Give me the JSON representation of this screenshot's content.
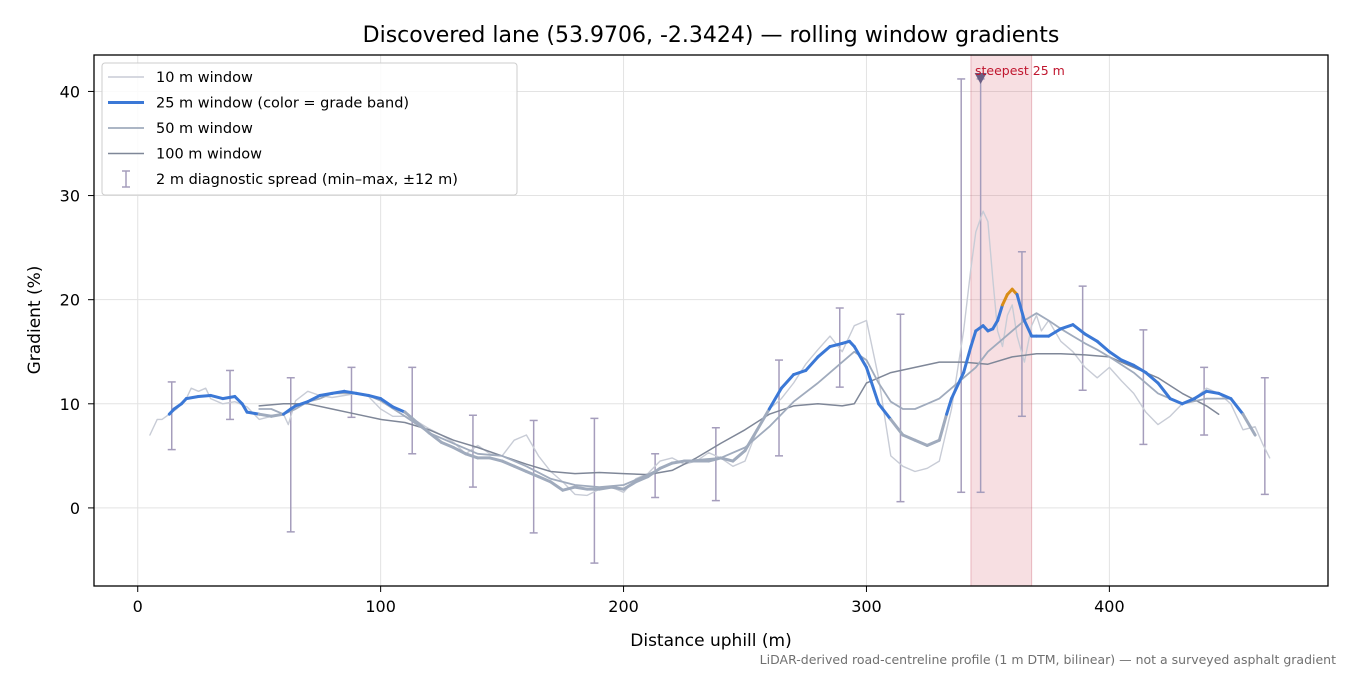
{
  "chart_data": {
    "type": "line",
    "title": "Discovered lane (53.9706, -2.3424) — rolling window gradients",
    "xlabel": "Distance uphill (m)",
    "ylabel": "Gradient (%)",
    "xlim": [
      -18,
      490
    ],
    "ylim": [
      -7.5,
      43.5
    ],
    "xticks": [
      0,
      100,
      200,
      300,
      400
    ],
    "yticks": [
      0,
      10,
      20,
      30,
      40
    ],
    "grid": true,
    "legend_position": "top-left",
    "footnote": "LiDAR-derived road-centreline profile (1 m DTM, bilinear) — not a surveyed asphalt gradient",
    "highlight": {
      "x_start": 343,
      "x_end": 368,
      "label": "steepest 25 m",
      "marker_x": 347,
      "marker_y": 41.2
    },
    "series": [
      {
        "name": "10 m window",
        "color": "#c8ccd6",
        "x": [
          5,
          8,
          10,
          13,
          16,
          20,
          22,
          25,
          28,
          30,
          35,
          40,
          45,
          50,
          55,
          60,
          62,
          65,
          70,
          75,
          80,
          85,
          90,
          95,
          100,
          105,
          110,
          115,
          120,
          125,
          130,
          135,
          140,
          145,
          150,
          155,
          160,
          165,
          170,
          175,
          180,
          185,
          190,
          195,
          200,
          205,
          210,
          215,
          220,
          225,
          230,
          235,
          240,
          245,
          250,
          255,
          260,
          265,
          270,
          275,
          280,
          285,
          290,
          295,
          300,
          305,
          310,
          315,
          320,
          325,
          330,
          335,
          340,
          343,
          345,
          348,
          350,
          352,
          354,
          356,
          358,
          360,
          362,
          365,
          368,
          370,
          372,
          375,
          380,
          385,
          390,
          395,
          400,
          405,
          410,
          415,
          420,
          425,
          430,
          435,
          440,
          445,
          450,
          455,
          460,
          463,
          466
        ],
        "y": [
          7.0,
          8.5,
          8.5,
          9.0,
          9.5,
          10.5,
          11.5,
          11.2,
          11.5,
          10.5,
          10.0,
          10.2,
          9.7,
          8.5,
          8.8,
          9.0,
          8.0,
          10.3,
          11.2,
          10.8,
          10.6,
          10.8,
          11.0,
          10.7,
          9.5,
          8.8,
          8.8,
          8.3,
          7.6,
          7.0,
          6.3,
          5.2,
          6.0,
          5.2,
          5.0,
          6.5,
          7.0,
          5.0,
          3.5,
          2.5,
          1.3,
          1.2,
          1.8,
          2.0,
          1.5,
          2.8,
          3.3,
          4.5,
          4.8,
          4.2,
          4.5,
          5.3,
          4.8,
          4.0,
          4.5,
          7.5,
          9.5,
          10.5,
          12.0,
          13.8,
          15.2,
          16.5,
          15.0,
          17.5,
          18.0,
          12.5,
          5.0,
          4.0,
          3.5,
          3.8,
          4.5,
          9.5,
          17.0,
          23.0,
          26.5,
          28.5,
          27.5,
          22.0,
          17.0,
          15.5,
          18.5,
          19.5,
          16.5,
          14.0,
          17.5,
          18.5,
          17.0,
          18.0,
          16.0,
          15.0,
          13.5,
          12.5,
          13.5,
          12.2,
          11.0,
          9.2,
          8.0,
          8.8,
          10.0,
          10.5,
          11.5,
          11.0,
          10.0,
          7.5,
          7.8,
          6.2,
          4.8
        ]
      },
      {
        "name": "25 m window (color = grade band)",
        "color": "#3b78d6",
        "x": [
          13,
          15,
          18,
          20,
          25,
          30,
          35,
          40,
          43,
          45,
          50,
          55,
          60,
          63,
          65,
          70,
          75,
          80,
          85,
          90,
          95,
          100,
          105,
          110,
          115,
          120,
          125,
          130,
          135,
          140,
          145,
          150,
          155,
          160,
          165,
          170,
          175,
          180,
          185,
          190,
          195,
          200,
          205,
          210,
          215,
          220,
          225,
          230,
          235,
          240,
          245,
          250,
          255,
          260,
          265,
          270,
          275,
          280,
          285,
          290,
          293,
          295,
          300,
          305,
          310,
          315,
          320,
          325,
          330,
          333,
          335,
          340,
          343,
          345,
          348,
          350,
          352,
          354,
          356,
          358,
          360,
          362,
          365,
          368,
          370,
          375,
          380,
          385,
          390,
          395,
          400,
          405,
          410,
          415,
          420,
          425,
          430,
          435,
          440,
          445,
          450,
          455,
          460
        ],
        "y": [
          9.0,
          9.5,
          10.0,
          10.5,
          10.7,
          10.8,
          10.5,
          10.7,
          10.0,
          9.2,
          9.0,
          8.8,
          9.0,
          9.5,
          9.8,
          10.2,
          10.8,
          11.0,
          11.2,
          11.0,
          10.8,
          10.5,
          9.7,
          9.2,
          8.2,
          7.2,
          6.3,
          5.8,
          5.2,
          4.8,
          4.8,
          4.5,
          4.0,
          3.5,
          3.0,
          2.5,
          1.7,
          2.0,
          1.8,
          1.8,
          2.0,
          1.8,
          2.5,
          3.0,
          3.8,
          4.3,
          4.5,
          4.5,
          4.5,
          4.8,
          4.5,
          5.5,
          7.5,
          9.5,
          11.5,
          12.8,
          13.2,
          14.5,
          15.5,
          15.8,
          16.0,
          15.5,
          13.5,
          10.0,
          8.5,
          7.0,
          6.5,
          6.0,
          6.5,
          9.0,
          10.5,
          13.0,
          15.5,
          17.0,
          17.5,
          17.0,
          17.2,
          18.0,
          19.5,
          20.5,
          21.0,
          20.5,
          18.0,
          16.5,
          16.5,
          16.5,
          17.2,
          17.6,
          16.7,
          16.0,
          15.0,
          14.2,
          13.7,
          13.0,
          12.0,
          10.5,
          10.0,
          10.5,
          11.2,
          11.0,
          10.5,
          9.0,
          7.0
        ]
      },
      {
        "name": "50 m window",
        "color": "#a0abbd",
        "x": [
          50,
          55,
          60,
          65,
          70,
          75,
          80,
          85,
          90,
          95,
          100,
          110,
          120,
          130,
          140,
          150,
          160,
          170,
          180,
          190,
          200,
          210,
          220,
          230,
          240,
          250,
          260,
          270,
          280,
          290,
          295,
          300,
          305,
          310,
          315,
          320,
          325,
          330,
          335,
          340,
          345,
          350,
          355,
          360,
          365,
          370,
          375,
          380,
          385,
          390,
          395,
          400,
          410,
          420,
          430,
          440,
          450,
          455,
          460
        ],
        "y": [
          9.5,
          9.5,
          9.0,
          9.5,
          10.2,
          10.5,
          11.0,
          11.0,
          11.0,
          10.8,
          10.3,
          8.8,
          7.2,
          6.2,
          5.2,
          5.0,
          4.0,
          2.8,
          2.2,
          2.0,
          2.2,
          3.2,
          4.3,
          4.6,
          4.8,
          5.8,
          7.8,
          10.2,
          12.0,
          14.0,
          15.0,
          14.2,
          12.0,
          10.2,
          9.5,
          9.5,
          10.0,
          10.5,
          11.5,
          12.5,
          13.5,
          15.0,
          16.0,
          17.0,
          18.0,
          18.7,
          18.0,
          17.2,
          16.5,
          15.8,
          15.2,
          14.5,
          13.0,
          11.0,
          10.0,
          10.5,
          10.5,
          9.0,
          7.0
        ]
      },
      {
        "name": "100 m window",
        "color": "#7f8798",
        "x": [
          50,
          60,
          70,
          80,
          90,
          100,
          110,
          120,
          130,
          140,
          150,
          160,
          170,
          180,
          190,
          200,
          210,
          220,
          230,
          240,
          250,
          260,
          270,
          280,
          290,
          295,
          300,
          310,
          320,
          330,
          340,
          350,
          360,
          370,
          380,
          390,
          400,
          410,
          420,
          430,
          440,
          445
        ],
        "y": [
          9.8,
          10.0,
          10.0,
          9.5,
          9.0,
          8.5,
          8.2,
          7.5,
          6.5,
          5.8,
          5.0,
          4.2,
          3.5,
          3.3,
          3.4,
          3.3,
          3.2,
          3.6,
          4.8,
          6.2,
          7.5,
          9.0,
          9.8,
          10.0,
          9.8,
          10.0,
          12.0,
          13.0,
          13.5,
          14.0,
          14.0,
          13.8,
          14.5,
          14.8,
          14.8,
          14.7,
          14.5,
          13.5,
          12.5,
          11.0,
          9.8,
          9.0
        ]
      },
      {
        "name": "2 m diagnostic spread (min–max, ±12 m)",
        "color": "#a59dbc",
        "x": [
          14,
          38,
          63,
          88,
          113,
          138,
          163,
          188,
          213,
          238,
          264,
          289,
          314,
          339,
          347,
          364,
          389,
          414,
          439,
          464
        ],
        "low": [
          5.6,
          8.5,
          -2.3,
          8.7,
          5.2,
          2.0,
          -2.4,
          -5.3,
          1.0,
          0.7,
          5.0,
          11.6,
          0.6,
          1.5,
          1.5,
          8.8,
          11.3,
          6.1,
          7.0,
          1.3
        ],
        "high": [
          12.1,
          13.2,
          12.5,
          13.5,
          13.5,
          8.9,
          8.4,
          8.6,
          5.2,
          7.7,
          14.2,
          19.2,
          18.6,
          41.2,
          41.2,
          24.6,
          21.3,
          17.1,
          13.5,
          12.5
        ]
      }
    ]
  }
}
